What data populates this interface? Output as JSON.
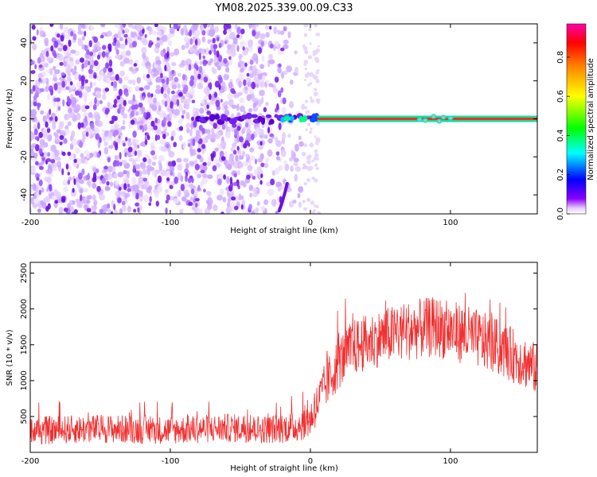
{
  "title": "YM08.2025.339.00.09.C33",
  "chart_data": [
    {
      "type": "heatmap",
      "name": "spectrogram",
      "xlabel": "Height of straight line (km)",
      "ylabel": "Frequency (Hz)",
      "xlim": [
        -200,
        162
      ],
      "ylim": [
        -50,
        50
      ],
      "xticks": [
        -200,
        -100,
        0,
        100
      ],
      "yticks": [
        -40,
        -20,
        0,
        20,
        40
      ],
      "grid": false,
      "features": {
        "noise_region_x": [
          -200,
          -5
        ],
        "signal_line_freq_hz": 0,
        "signal_line_start_km": 5,
        "fragment_start_km": -80,
        "fragment_end_km": 5
      },
      "colorbar": {
        "label": "Normalized spectral amplitude",
        "range": [
          0,
          0.97
        ],
        "ticks": [
          0.0,
          0.2,
          0.4,
          0.6,
          0.8
        ],
        "colors": [
          "#ffffff",
          "#7b00ff",
          "#0000ff",
          "#00ffff",
          "#00ff00",
          "#ffff00",
          "#ff8000",
          "#ff0000",
          "#ff00aa"
        ]
      }
    },
    {
      "type": "line",
      "name": "snr",
      "xlabel": "Height of straight line (km)",
      "ylabel": "SNR (10 * v/v)",
      "xlim": [
        -200,
        162
      ],
      "ylim": [
        0,
        2650
      ],
      "xticks": [
        -200,
        -100,
        0,
        100
      ],
      "yticks": [
        500,
        1000,
        1500,
        2000,
        2500
      ],
      "grid": false,
      "color": "#f03030",
      "envelope": {
        "x": [
          -200,
          -150,
          -100,
          -60,
          -30,
          -10,
          0,
          10,
          20,
          30,
          50,
          70,
          90,
          110,
          130,
          150,
          162
        ],
        "mean": [
          300,
          330,
          310,
          340,
          320,
          360,
          460,
          900,
          1250,
          1450,
          1600,
          1700,
          1750,
          1650,
          1500,
          1300,
          1150
        ],
        "spread": [
          200,
          200,
          200,
          200,
          200,
          220,
          260,
          330,
          380,
          400,
          400,
          420,
          430,
          420,
          400,
          380,
          360
        ]
      }
    }
  ]
}
